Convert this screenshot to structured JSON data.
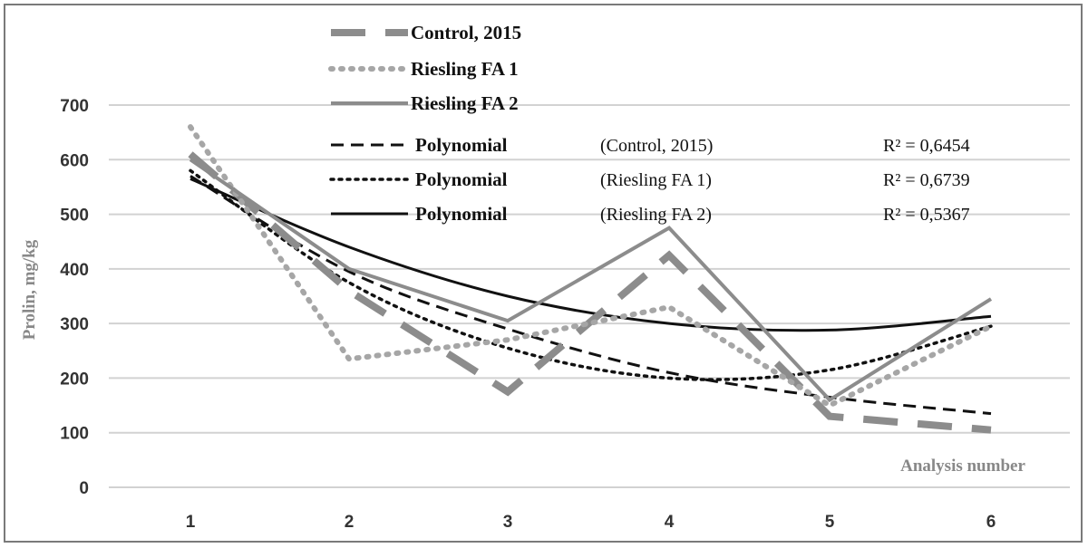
{
  "chart_data": {
    "type": "line",
    "x": [
      1,
      2,
      3,
      4,
      5,
      6
    ],
    "categories": [
      "1",
      "2",
      "3",
      "4",
      "5",
      "6"
    ],
    "ylim": [
      0,
      700
    ],
    "yticks": [
      "0",
      "100",
      "200",
      "300",
      "400",
      "500",
      "600",
      "700"
    ],
    "xlabel": "Analysis number",
    "ylabel": "Prolin, mg/kg",
    "grid": "horizontal",
    "series": [
      {
        "name": "Control, 2015",
        "values": [
          610,
          360,
          175,
          425,
          130,
          105
        ],
        "color": "#8c8c8c",
        "style": "long-dash"
      },
      {
        "name": "Riesling FA 1",
        "values": [
          660,
          235,
          270,
          330,
          150,
          295
        ],
        "color": "#a6a6a6",
        "style": "dotted"
      },
      {
        "name": "Riesling FA 2",
        "values": [
          600,
          400,
          305,
          475,
          160,
          345
        ],
        "color": "#8c8c8c",
        "style": "solid"
      }
    ],
    "trendlines": [
      {
        "label": "Polynomial",
        "series": "(Control, 2015)",
        "r2": "R² = 0,6454",
        "values": [
          570,
          395,
          290,
          210,
          165,
          135
        ],
        "style": "dashed"
      },
      {
        "label": "Polynomial",
        "series": "(Riesling  FA 1)",
        "r2": "R² = 0,6739",
        "values": [
          580,
          375,
          255,
          200,
          215,
          295
        ],
        "style": "dotted"
      },
      {
        "label": "Polynomial",
        "series": "(Riesling  FA 2)",
        "r2": "R² = 0,5367",
        "values": [
          565,
          440,
          350,
          300,
          288,
          313
        ],
        "style": "solid"
      }
    ]
  }
}
